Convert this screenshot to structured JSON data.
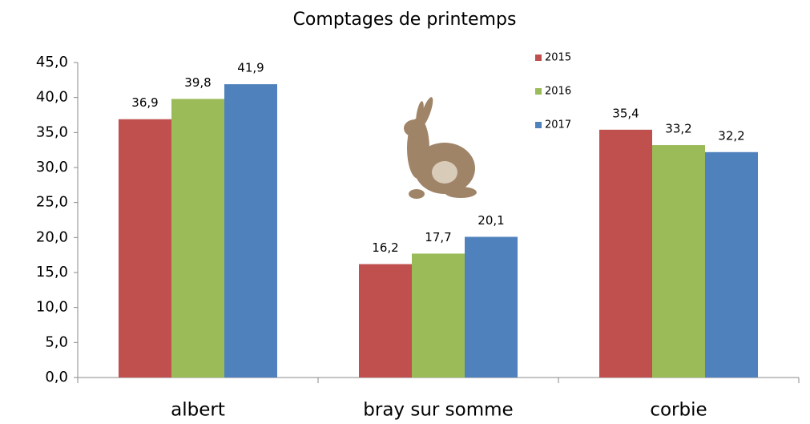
{
  "chart_data": {
    "type": "bar",
    "title": "Comptages de printemps",
    "categories": [
      "albert",
      "bray sur somme",
      "corbie"
    ],
    "series": [
      {
        "name": "2015",
        "color": "#c0504d",
        "values": [
          36.9,
          16.2,
          35.4
        ],
        "value_labels": [
          "36,9",
          "16,2",
          "35,4"
        ]
      },
      {
        "name": "2016",
        "color": "#9bbb59",
        "values": [
          39.8,
          17.7,
          33.2
        ],
        "value_labels": [
          "39,8",
          "17,7",
          "33,2"
        ]
      },
      {
        "name": "2017",
        "color": "#4f81bd",
        "values": [
          41.9,
          20.1,
          32.2
        ],
        "value_labels": [
          "41,9",
          "20,1",
          "32,2"
        ]
      }
    ],
    "ylim": [
      0,
      45
    ],
    "yticks": [
      {
        "value": 0,
        "label": "0,0"
      },
      {
        "value": 5,
        "label": "5,0"
      },
      {
        "value": 10,
        "label": "10,0"
      },
      {
        "value": 15,
        "label": "15,0"
      },
      {
        "value": 20,
        "label": "20,0"
      },
      {
        "value": 25,
        "label": "25,0"
      },
      {
        "value": 30,
        "label": "30,0"
      },
      {
        "value": 35,
        "label": "35,0"
      },
      {
        "value": 40,
        "label": "40,0"
      },
      {
        "value": 45,
        "label": "45,0"
      }
    ],
    "grid": false
  }
}
